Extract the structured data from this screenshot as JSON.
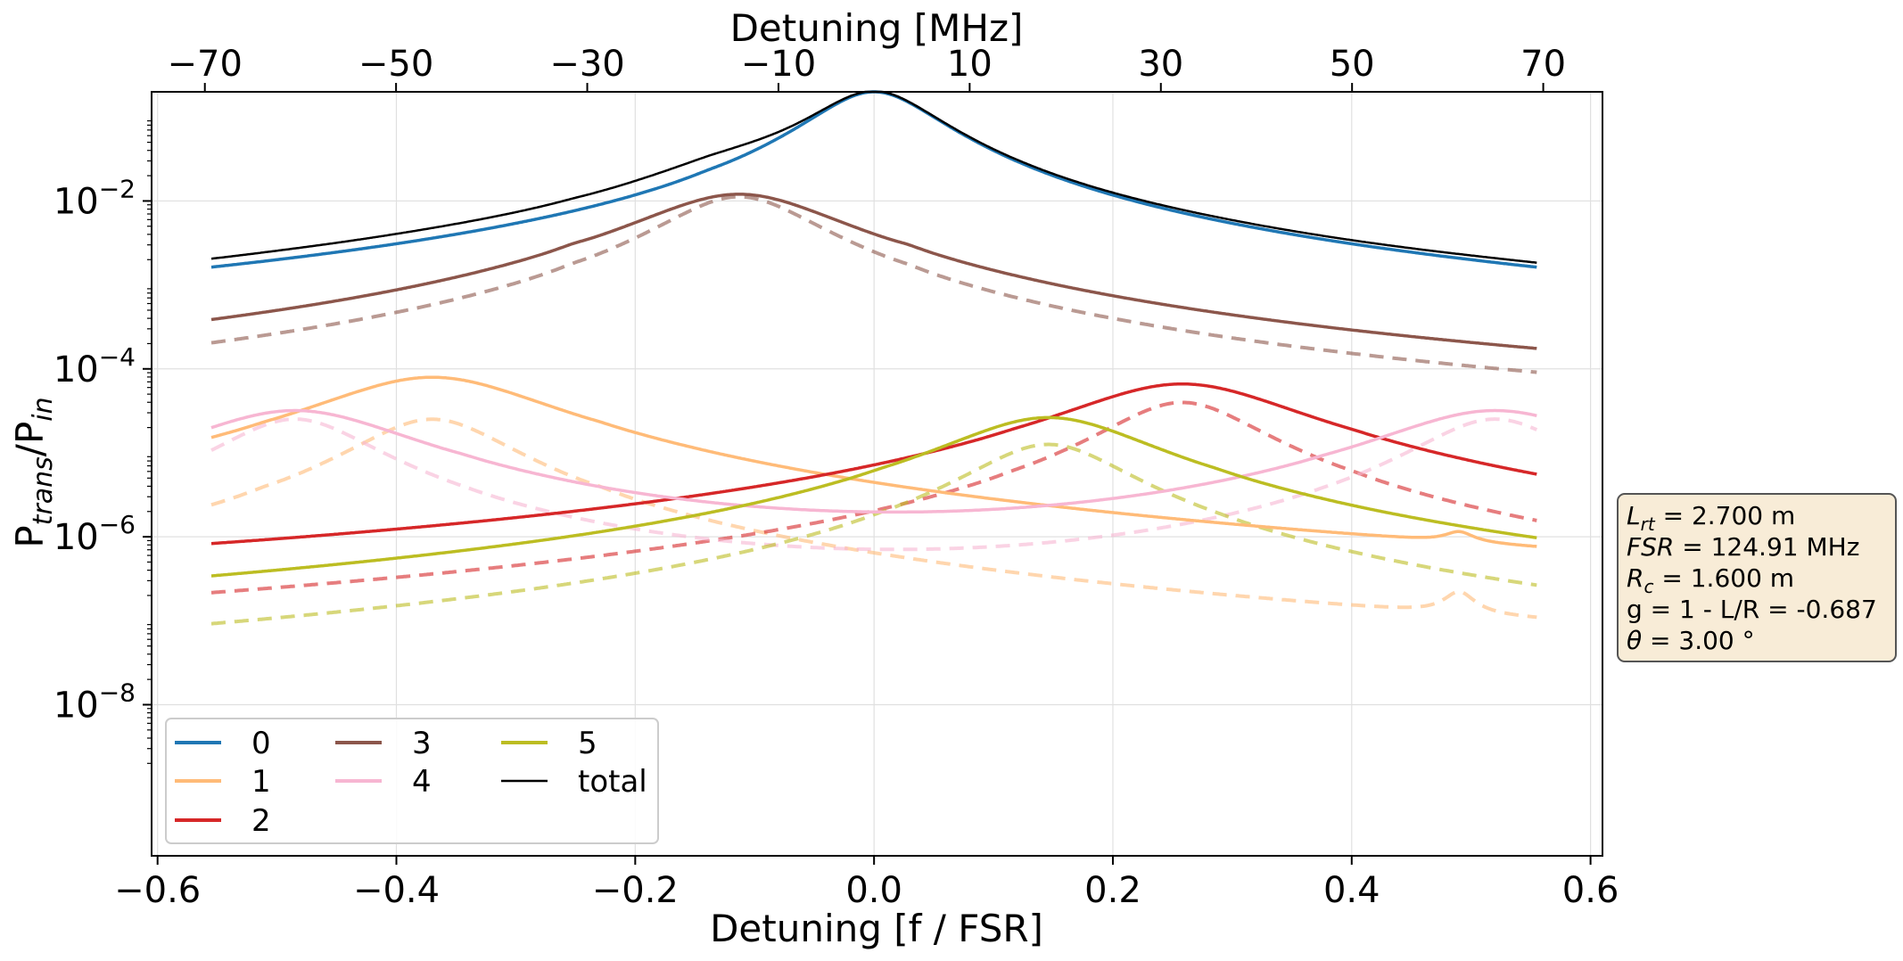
{
  "chart_data": {
    "type": "line",
    "xlabel": "Detuning [f / FSR]",
    "ylabel_main": "P",
    "ylabel_sub1": "trans",
    "ylabel_sep": "/P",
    "ylabel_sub2": "in",
    "top_xlabel": "Detuning [MHz]",
    "y_scale": "log",
    "xlim": [
      -0.605,
      0.61
    ],
    "ylim_log10": [
      -9.8,
      -0.7
    ],
    "x_ticks": [
      {
        "v": -0.6,
        "label": "−0.6"
      },
      {
        "v": -0.4,
        "label": "−0.4"
      },
      {
        "v": -0.2,
        "label": "−0.2"
      },
      {
        "v": 0.0,
        "label": "0.0"
      },
      {
        "v": 0.2,
        "label": "0.2"
      },
      {
        "v": 0.4,
        "label": "0.4"
      },
      {
        "v": 0.6,
        "label": "0.6"
      }
    ],
    "top_ticks_mhz": [
      {
        "v": -70,
        "label": "−70"
      },
      {
        "v": -50,
        "label": "−50"
      },
      {
        "v": -30,
        "label": "−30"
      },
      {
        "v": -10,
        "label": "−10"
      },
      {
        "v": 10,
        "label": "10"
      },
      {
        "v": 30,
        "label": "30"
      },
      {
        "v": 50,
        "label": "50"
      },
      {
        "v": 70,
        "label": "70"
      }
    ],
    "fsr_mhz": 124.91,
    "y_ticks": [
      {
        "exp": -2,
        "base": "10",
        "sup": "−2"
      },
      {
        "exp": -4,
        "base": "10",
        "sup": "−4"
      },
      {
        "exp": -6,
        "base": "10",
        "sup": "−6"
      },
      {
        "exp": -8,
        "base": "10",
        "sup": "−8"
      }
    ],
    "grid": true,
    "x_range": [
      -0.555,
      0.555
    ],
    "series": [
      {
        "name": "0",
        "color": "#1f77b4",
        "base_mode": 0,
        "solid": {
          "floor": -4.72,
          "amp": 0.17,
          "peaks": [
            [
              0.0,
              -0.7,
              0.05
            ],
            [
              -0.138,
              -3.28,
              0.02
            ]
          ]
        }
      },
      {
        "name": "1",
        "color": "#ffbb78",
        "base_mode": 1,
        "solid": {
          "floor": -8.0,
          "amp": 0.0,
          "peaks": [
            [
              -0.37,
              -4.1,
              0.09
            ],
            [
              -0.51,
              -6.55,
              0.014
            ],
            [
              -0.23,
              -6.55,
              0.014
            ],
            [
              0.49,
              -6.55,
              0.014
            ]
          ],
          "end_rise": [
            0.51,
            0.555,
            -6.73
          ]
        },
        "dashed": {
          "floor": -9.4,
          "amp": 0.0,
          "peaks": [
            [
              -0.37,
              -4.6,
              0.06
            ],
            [
              -0.51,
              -7.0,
              0.014
            ],
            [
              -0.23,
              -7.0,
              0.014
            ],
            [
              0.49,
              -7.0,
              0.014
            ]
          ]
        }
      },
      {
        "name": "2",
        "color": "#d62728",
        "base_mode": 2,
        "solid": {
          "floor": -8.0,
          "amp": 0.0,
          "peaks": [
            [
              0.258,
              -4.18,
              0.09
            ],
            [
              0.118,
              -6.72,
              0.014
            ],
            [
              0.4,
              -6.72,
              0.014
            ]
          ],
          "start_val": -7.68
        },
        "dashed": {
          "floor": -9.4,
          "amp": 0.0,
          "peaks": [
            [
              0.258,
              -4.4,
              0.06
            ],
            [
              0.118,
              -7.0,
              0.014
            ],
            [
              0.4,
              -7.0,
              0.014
            ]
          ]
        }
      },
      {
        "name": "3",
        "color": "#8c564b",
        "base_mode": 3,
        "solid": {
          "floor": -5.3,
          "amp": 0.0,
          "peaks": [
            [
              -0.113,
              -1.92,
              0.08
            ],
            [
              -0.252,
              -3.96,
              0.015
            ],
            [
              0.028,
              -3.96,
              0.015
            ]
          ]
        },
        "dashed": {
          "floor": -5.9,
          "amp": 0.0,
          "peaks": [
            [
              -0.113,
              -1.95,
              0.06
            ],
            [
              -0.252,
              -4.3,
              0.015
            ],
            [
              0.028,
              -4.3,
              0.015
            ]
          ]
        }
      },
      {
        "name": "4",
        "color": "#f7b6d2",
        "base_mode": 4,
        "solid": {
          "floor": -8.4,
          "amp": 0.0,
          "peaks": [
            [
              -0.485,
              -4.5,
              0.09
            ],
            [
              0.52,
              -4.5,
              0.09
            ],
            [
              -0.345,
              -6.98,
              0.014
            ],
            [
              0.378,
              -6.98,
              0.014
            ]
          ]
        },
        "dashed": {
          "floor": -9.6,
          "amp": 0.0,
          "peaks": [
            [
              -0.485,
              -4.6,
              0.06
            ],
            [
              0.52,
              -4.6,
              0.06
            ],
            [
              -0.345,
              -7.6,
              0.014
            ],
            [
              0.378,
              -7.6,
              0.014
            ]
          ]
        }
      },
      {
        "name": "5",
        "color": "#bcbd22",
        "base_mode": 5,
        "solid": {
          "floor": -8.42,
          "amp": 0.0,
          "peaks": [
            [
              0.146,
              -4.58,
              0.08
            ],
            [
              0.006,
              -7.1,
              0.014
            ],
            [
              0.286,
              -7.1,
              0.014
            ]
          ]
        },
        "dashed": {
          "floor": -9.2,
          "amp": 0.0,
          "peaks": [
            [
              0.146,
              -4.9,
              0.06
            ],
            [
              0.006,
              -7.8,
              0.014
            ],
            [
              0.286,
              -7.8,
              0.014
            ]
          ]
        }
      },
      {
        "name": "total",
        "color": "#000000",
        "total": true
      }
    ],
    "legend": {
      "placement": "lower-left",
      "columns": 3,
      "order": [
        "0",
        "3",
        "5",
        "1",
        "4",
        "total",
        "2"
      ]
    },
    "annotation": {
      "lines": [
        {
          "var": "L",
          "sub": "rt",
          "text": " = 2.700 m"
        },
        {
          "var": "FSR",
          "sub": "",
          "text": " = 124.91 MHz"
        },
        {
          "var": "R",
          "sub": "c",
          "text": " = 1.600 m"
        },
        {
          "var": "",
          "sub": "",
          "text": "g = 1 - L/R = -0.687"
        },
        {
          "var": "θ",
          "sub": "",
          "text": " = 3.00  °"
        }
      ],
      "box_color": "#f8ecd7"
    }
  }
}
